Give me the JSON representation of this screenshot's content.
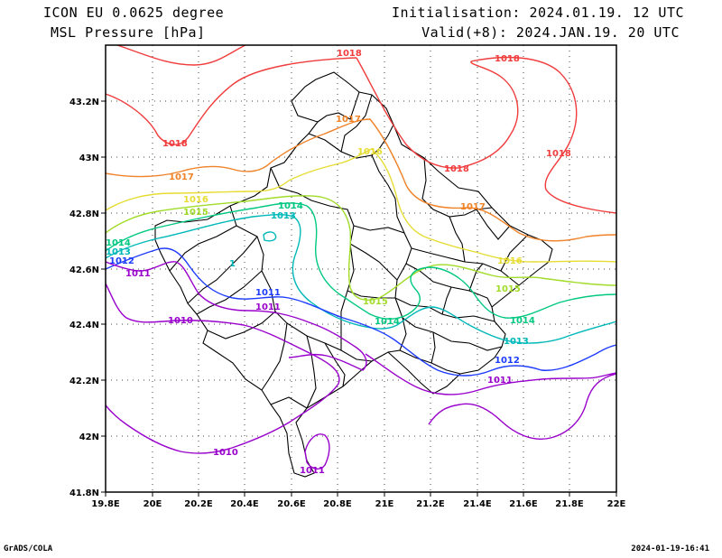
{
  "header": {
    "model": "ICON EU 0.0625 degree",
    "field": "MSL Pressure [hPa]",
    "init": "Initialisation: 2024.01.19. 12 UTC",
    "valid": "Valid(+8): 2024.JAN.19. 20 UTC"
  },
  "footer": {
    "left": "GrADS/COLA",
    "right": "2024-01-19-16:41"
  },
  "axes": {
    "x_ticks": [
      "19.8E",
      "20E",
      "20.2E",
      "20.4E",
      "20.6E",
      "20.8E",
      "21E",
      "21.2E",
      "21.4E",
      "21.6E",
      "21.8E",
      "22E"
    ],
    "y_ticks": [
      "43.2N",
      "43N",
      "42.8N",
      "42.6N",
      "42.4N",
      "42.2N",
      "42N",
      "41.8N"
    ]
  },
  "colors": {
    "c1010": "#9900cc",
    "c1011": "#9900cc",
    "c1012": "#1e3cff",
    "c1013": "#00b8b8",
    "c1014": "#00c880",
    "c1015": "#a0dc28",
    "c1016": "#e6dc32",
    "c1017": "#f08228",
    "c1018": "#f03c3c",
    "border": "#000000"
  },
  "contour_labels": {
    "l1018a": "1018",
    "l1018b": "1018",
    "l1018c": "1018",
    "l1018d": "1018",
    "l1018e": "1018",
    "l1017a": "1017",
    "l1017b": "1017",
    "l1017c": "1017",
    "l1016a": "1016",
    "l1016b": "1016",
    "l1016c": "1016",
    "l1015a": "1015",
    "l1015b": "1015",
    "l1015c": "1015",
    "l1014a": "1014",
    "l1014b": "1014",
    "l1014c": "1014",
    "l1014d": "1014",
    "l1013a": "1013",
    "l1013b": "1013",
    "l1013c": "1013",
    "l1013d": "1",
    "l1012a": "1012",
    "l1012b": "1012",
    "l1011a": "1011",
    "l1011b": "1011",
    "l1011c": "1011",
    "l1011d": "1011",
    "l1011e": "1011",
    "l1010a": "1010",
    "l1010b": "1010"
  }
}
